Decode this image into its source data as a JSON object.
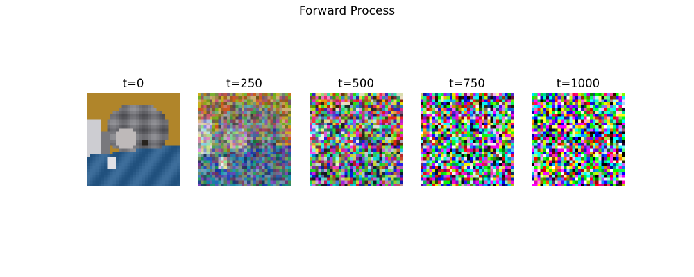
{
  "figure": {
    "title": "Forward Process"
  },
  "panels": [
    {
      "label": "t=0",
      "noise": 0.0,
      "icon": "cat-photo-clean"
    },
    {
      "label": "t=250",
      "noise": 0.35,
      "icon": "cat-photo-slightly-noisy"
    },
    {
      "label": "t=500",
      "noise": 0.72,
      "icon": "cat-photo-mostly-noise"
    },
    {
      "label": "t=750",
      "noise": 0.93,
      "icon": "noise-image"
    },
    {
      "label": "t=1000",
      "noise": 1.0,
      "icon": "noise-image"
    }
  ],
  "colors": {
    "background_top": "#b0852a",
    "fabric": "#2f5f8c",
    "cat_gray": "#6f6f74"
  }
}
